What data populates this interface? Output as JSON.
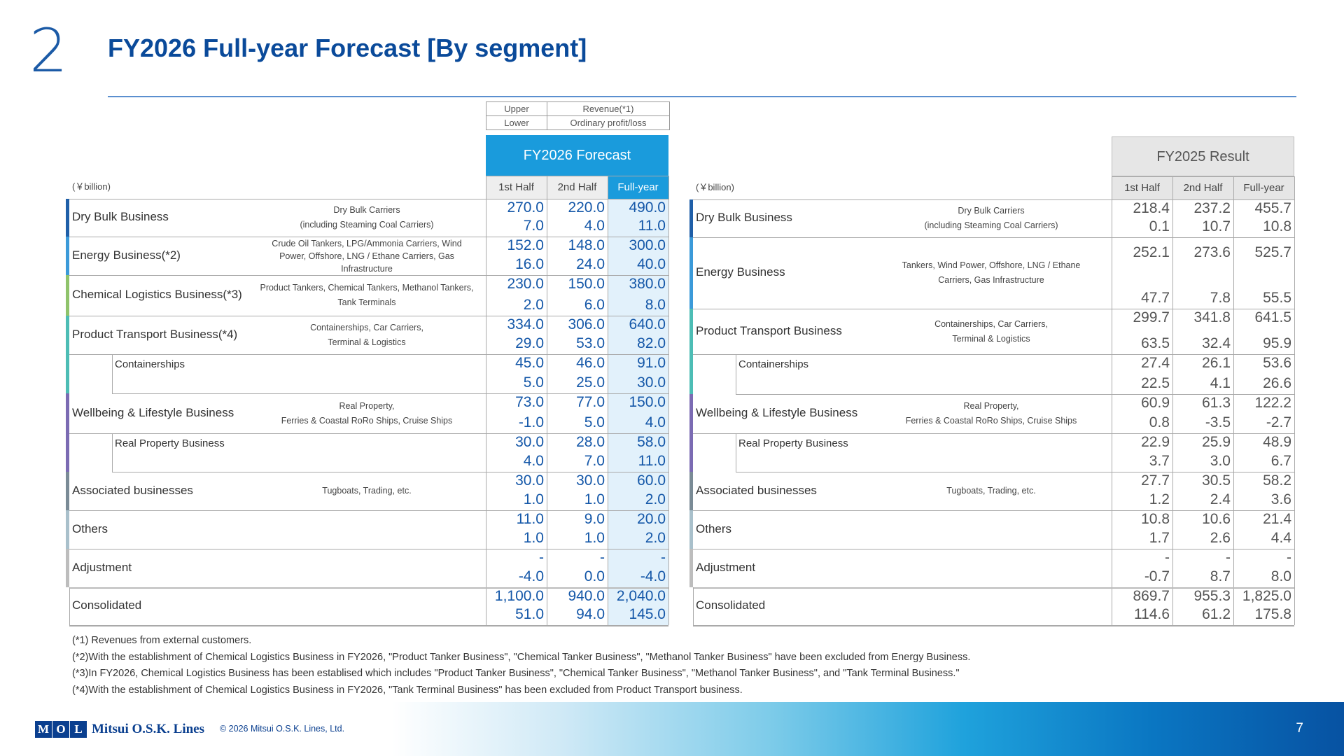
{
  "page": {
    "section_number": "2",
    "title": "FY2026 Full-year Forecast [By segment]",
    "page_number": "7"
  },
  "legend": {
    "upper_label": "Upper",
    "upper_value": "Revenue(*1)",
    "lower_label": "Lower",
    "lower_value": "Ordinary profit/loss"
  },
  "forecast": {
    "header": "FY2026 Forecast",
    "unit": "(￥billion)",
    "columns": [
      "1st Half",
      "2nd Half",
      "Full-year"
    ],
    "rows": [
      {
        "name": "Dry Bulk Business",
        "desc": "Dry Bulk Carriers\n(including Steaming Coal Carriers)",
        "upper": [
          "270.0",
          "220.0",
          "490.0"
        ],
        "lower": [
          "7.0",
          "4.0",
          "11.0"
        ]
      },
      {
        "name": "Energy Business(*2)",
        "desc": "Crude Oil Tankers, LPG/Ammonia Carriers, Wind\nPower, Offshore, LNG / Ethane Carriers, Gas\nInfrastructure",
        "upper": [
          "152.0",
          "148.0",
          "300.0"
        ],
        "lower": [
          "16.0",
          "24.0",
          "40.0"
        ]
      },
      {
        "name": "Chemical Logistics Business(*3)",
        "desc": "Product Tankers, Chemical Tankers, Methanol Tankers,\nTank Terminals",
        "upper": [
          "230.0",
          "150.0",
          "380.0"
        ],
        "lower": [
          "2.0",
          "6.0",
          "8.0"
        ]
      },
      {
        "name": "Product Transport Business(*4)",
        "desc": "Containerships, Car Carriers,\nTerminal & Logistics",
        "upper": [
          "334.0",
          "306.0",
          "640.0"
        ],
        "lower": [
          "29.0",
          "53.0",
          "82.0"
        ]
      },
      {
        "name": "Containerships",
        "desc": "",
        "upper": [
          "45.0",
          "46.0",
          "91.0"
        ],
        "lower": [
          "5.0",
          "25.0",
          "30.0"
        ]
      },
      {
        "name": "Wellbeing & Lifestyle Business",
        "desc": "Real Property,\nFerries & Coastal RoRo Ships, Cruise Ships",
        "upper": [
          "73.0",
          "77.0",
          "150.0"
        ],
        "lower": [
          "-1.0",
          "5.0",
          "4.0"
        ]
      },
      {
        "name": "Real Property Business",
        "desc": "",
        "upper": [
          "30.0",
          "28.0",
          "58.0"
        ],
        "lower": [
          "4.0",
          "7.0",
          "11.0"
        ]
      },
      {
        "name": "Associated businesses",
        "desc": "Tugboats, Trading, etc.",
        "upper": [
          "30.0",
          "30.0",
          "60.0"
        ],
        "lower": [
          "1.0",
          "1.0",
          "2.0"
        ]
      },
      {
        "name": "Others",
        "desc": "",
        "upper": [
          "11.0",
          "9.0",
          "20.0"
        ],
        "lower": [
          "1.0",
          "1.0",
          "2.0"
        ]
      },
      {
        "name": "Adjustment",
        "desc": "",
        "upper": [
          "-",
          "-",
          "-"
        ],
        "lower": [
          "-4.0",
          "0.0",
          "-4.0"
        ]
      },
      {
        "name": "Consolidated",
        "desc": "",
        "upper": [
          "1,100.0",
          "940.0",
          "2,040.0"
        ],
        "lower": [
          "51.0",
          "94.0",
          "145.0"
        ]
      }
    ]
  },
  "result": {
    "header": "FY2025 Result",
    "unit": "(￥billion)",
    "columns": [
      "1st Half",
      "2nd Half",
      "Full-year"
    ],
    "rows": [
      {
        "name": "Dry Bulk Business",
        "desc": "Dry Bulk Carriers\n(including Steaming Coal Carriers)",
        "upper": [
          "218.4",
          "237.2",
          "455.7"
        ],
        "lower": [
          "0.1",
          "10.7",
          "10.8"
        ]
      },
      {
        "name": "Energy Business",
        "desc": "Tankers, Wind Power, Offshore, LNG / Ethane\nCarriers, Gas Infrastructure",
        "upper": [
          "252.1",
          "273.6",
          "525.7"
        ],
        "lower": [
          "47.7",
          "7.8",
          "55.5"
        ]
      },
      {
        "name": "Product Transport Business",
        "desc": "Containerships, Car Carriers,\nTerminal & Logistics",
        "upper": [
          "299.7",
          "341.8",
          "641.5"
        ],
        "lower": [
          "63.5",
          "32.4",
          "95.9"
        ]
      },
      {
        "name": "Containerships",
        "desc": "",
        "upper": [
          "27.4",
          "26.1",
          "53.6"
        ],
        "lower": [
          "22.5",
          "4.1",
          "26.6"
        ]
      },
      {
        "name": "Wellbeing & Lifestyle Business",
        "desc": "Real Property,\nFerries & Coastal RoRo Ships, Cruise Ships",
        "upper": [
          "60.9",
          "61.3",
          "122.2"
        ],
        "lower": [
          "0.8",
          "-3.5",
          "-2.7"
        ]
      },
      {
        "name": "Real Property Business",
        "desc": "",
        "upper": [
          "22.9",
          "25.9",
          "48.9"
        ],
        "lower": [
          "3.7",
          "3.0",
          "6.7"
        ]
      },
      {
        "name": "Associated businesses",
        "desc": "Tugboats, Trading, etc.",
        "upper": [
          "27.7",
          "30.5",
          "58.2"
        ],
        "lower": [
          "1.2",
          "2.4",
          "3.6"
        ]
      },
      {
        "name": "Others",
        "desc": "",
        "upper": [
          "10.8",
          "10.6",
          "21.4"
        ],
        "lower": [
          "1.7",
          "2.6",
          "4.4"
        ]
      },
      {
        "name": "Adjustment",
        "desc": "",
        "upper": [
          "-",
          "-",
          "-"
        ],
        "lower": [
          "-0.7",
          "8.7",
          "8.0"
        ]
      },
      {
        "name": "Consolidated",
        "desc": "",
        "upper": [
          "869.7",
          "955.3",
          "1,825.0"
        ],
        "lower": [
          "114.6",
          "61.2",
          "175.8"
        ]
      }
    ]
  },
  "segment_colors": {
    "dry_bulk": "#1f5fa8",
    "energy": "#3b9ad9",
    "chemical": "#8fc36b",
    "product_transport": "#4dbdb5",
    "wellbeing": "#7b6bb3",
    "associated": "#7a8b96",
    "others": "#a9c0cb",
    "adjustment": "#bdbdbd"
  },
  "notes": [
    "(*1) Revenues from external customers.",
    "(*2)With the establishment of Chemical Logistics Business in FY2026, \"Product Tanker Business\", \"Chemical Tanker Business\", \"Methanol Tanker Business\" have been excluded from Energy Business.",
    "(*3)In FY2026, Chemical Logistics Business has been establised which includes \"Product Tanker Business\", \"Chemical Tanker Business\",  \"Methanol Tanker Business\", and \"Tank Terminal Business.\"",
    "(*4)With the establishment of Chemical Logistics Business in FY2026, \"Tank Terminal Business\" has been excluded from Product Transport business."
  ],
  "footer": {
    "logo_letters": [
      "M",
      "O",
      "L"
    ],
    "logo_text": "Mitsui O.S.K. Lines",
    "copyright": "© 2026 Mitsui O.S.K. Lines, Ltd."
  }
}
